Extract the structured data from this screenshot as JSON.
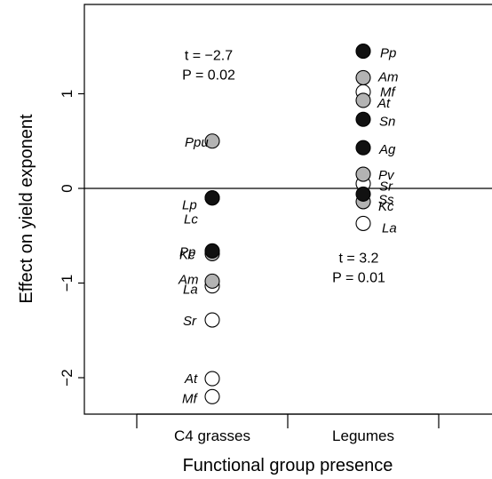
{
  "chart_data": {
    "type": "scatter",
    "title": "",
    "xlabel": "Functional group presence",
    "ylabel": "Effect on yield exponent",
    "categories": [
      "C4 grasses",
      "Legumes"
    ],
    "ylim": [
      -2.4,
      1.9
    ],
    "yticks": [
      -2,
      -1,
      0,
      1
    ],
    "ytick_labels": [
      "−2",
      "−1",
      "0",
      "1"
    ],
    "reference_line_y": 0,
    "grid": false,
    "legend": "none",
    "fill_colors": {
      "black": "#111111",
      "grey": "#b3b3b3",
      "white": "#ffffff"
    },
    "annotations": [
      {
        "category": "C4 grasses",
        "stat_t": "t = −2.7",
        "stat_p": "P = 0.02",
        "y": 1.27
      },
      {
        "category": "Legumes",
        "stat_t": "t = 3.2",
        "stat_p": "P = 0.01",
        "y": -0.87
      }
    ],
    "points": [
      {
        "category": "C4 grasses",
        "label": "Ppu",
        "y": 0.5,
        "fill": "grey"
      },
      {
        "category": "C4 grasses",
        "label": "Lp",
        "y": -0.1,
        "fill": "black"
      },
      {
        "category": "C4 grasses",
        "label": "Lc",
        "y": -0.1,
        "fill": "grey"
      },
      {
        "category": "C4 grasses",
        "label": "Pp",
        "y": -0.66,
        "fill": "black"
      },
      {
        "category": "C4 grasses",
        "label": "Kc",
        "y": -0.69,
        "fill": "grey"
      },
      {
        "category": "C4 grasses",
        "label": "Am",
        "y": -0.98,
        "fill": "grey"
      },
      {
        "category": "C4 grasses",
        "label": "La",
        "y": -1.03,
        "fill": "white"
      },
      {
        "category": "C4 grasses",
        "label": "Sr",
        "y": -1.39,
        "fill": "white"
      },
      {
        "category": "C4 grasses",
        "label": "At",
        "y": -2.01,
        "fill": "white"
      },
      {
        "category": "C4 grasses",
        "label": "Mf",
        "y": -2.2,
        "fill": "white"
      },
      {
        "category": "Legumes",
        "label": "Pp",
        "y": 1.45,
        "fill": "black"
      },
      {
        "category": "Legumes",
        "label": "Am",
        "y": 1.17,
        "fill": "grey"
      },
      {
        "category": "Legumes",
        "label": "At",
        "y": 0.93,
        "fill": "grey"
      },
      {
        "category": "Legumes",
        "label": "Mf",
        "y": 1.02,
        "fill": "white"
      },
      {
        "category": "Legumes",
        "label": "Sn",
        "y": 0.73,
        "fill": "black"
      },
      {
        "category": "Legumes",
        "label": "Ag",
        "y": 0.43,
        "fill": "black"
      },
      {
        "category": "Legumes",
        "label": "Pv",
        "y": 0.15,
        "fill": "grey"
      },
      {
        "category": "Legumes",
        "label": "Sr",
        "y": 0.05,
        "fill": "white"
      },
      {
        "category": "Legumes",
        "label": "Ss",
        "y": -0.06,
        "fill": "black"
      },
      {
        "category": "Legumes",
        "label": "Kc",
        "y": -0.14,
        "fill": "grey"
      },
      {
        "category": "Legumes",
        "label": "La",
        "y": -0.37,
        "fill": "white"
      }
    ]
  }
}
